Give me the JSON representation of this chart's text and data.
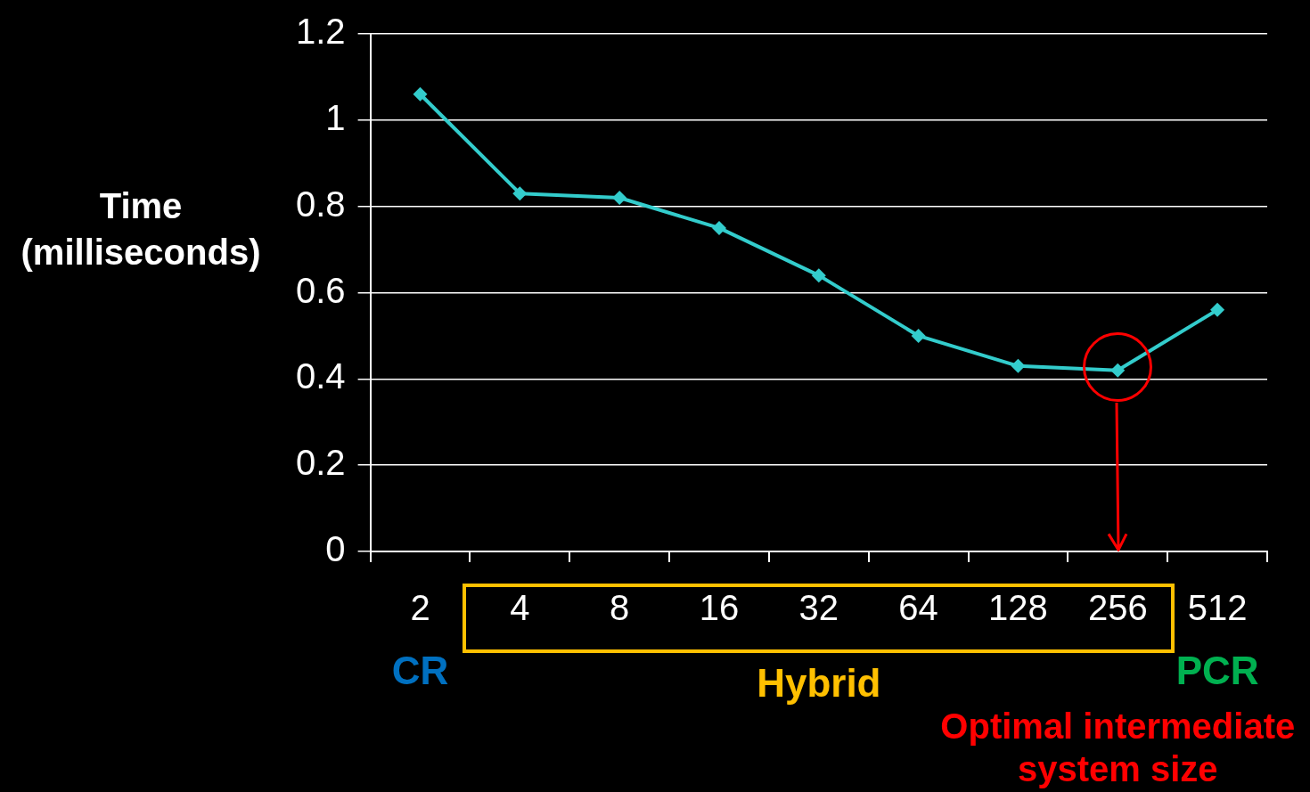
{
  "chart_data": {
    "type": "line",
    "ylabel": "Time\n(milliseconds)",
    "categories": [
      "2",
      "4",
      "8",
      "16",
      "32",
      "64",
      "128",
      "256",
      "512"
    ],
    "series": [
      {
        "color": "#33cccc",
        "values": [
          1.06,
          0.83,
          0.82,
          0.75,
          0.64,
          0.5,
          0.43,
          0.42,
          0.56
        ]
      }
    ],
    "ylim": [
      0,
      1.2
    ],
    "yticks": [
      0,
      0.2,
      0.4,
      0.6,
      0.8,
      1,
      1.2
    ],
    "grid": "y",
    "legend": false,
    "marker": "diamond",
    "line_style": "solid",
    "annotations": [
      "CR",
      "Hybrid",
      "PCR",
      "Optimal intermediate system size"
    ]
  }
}
